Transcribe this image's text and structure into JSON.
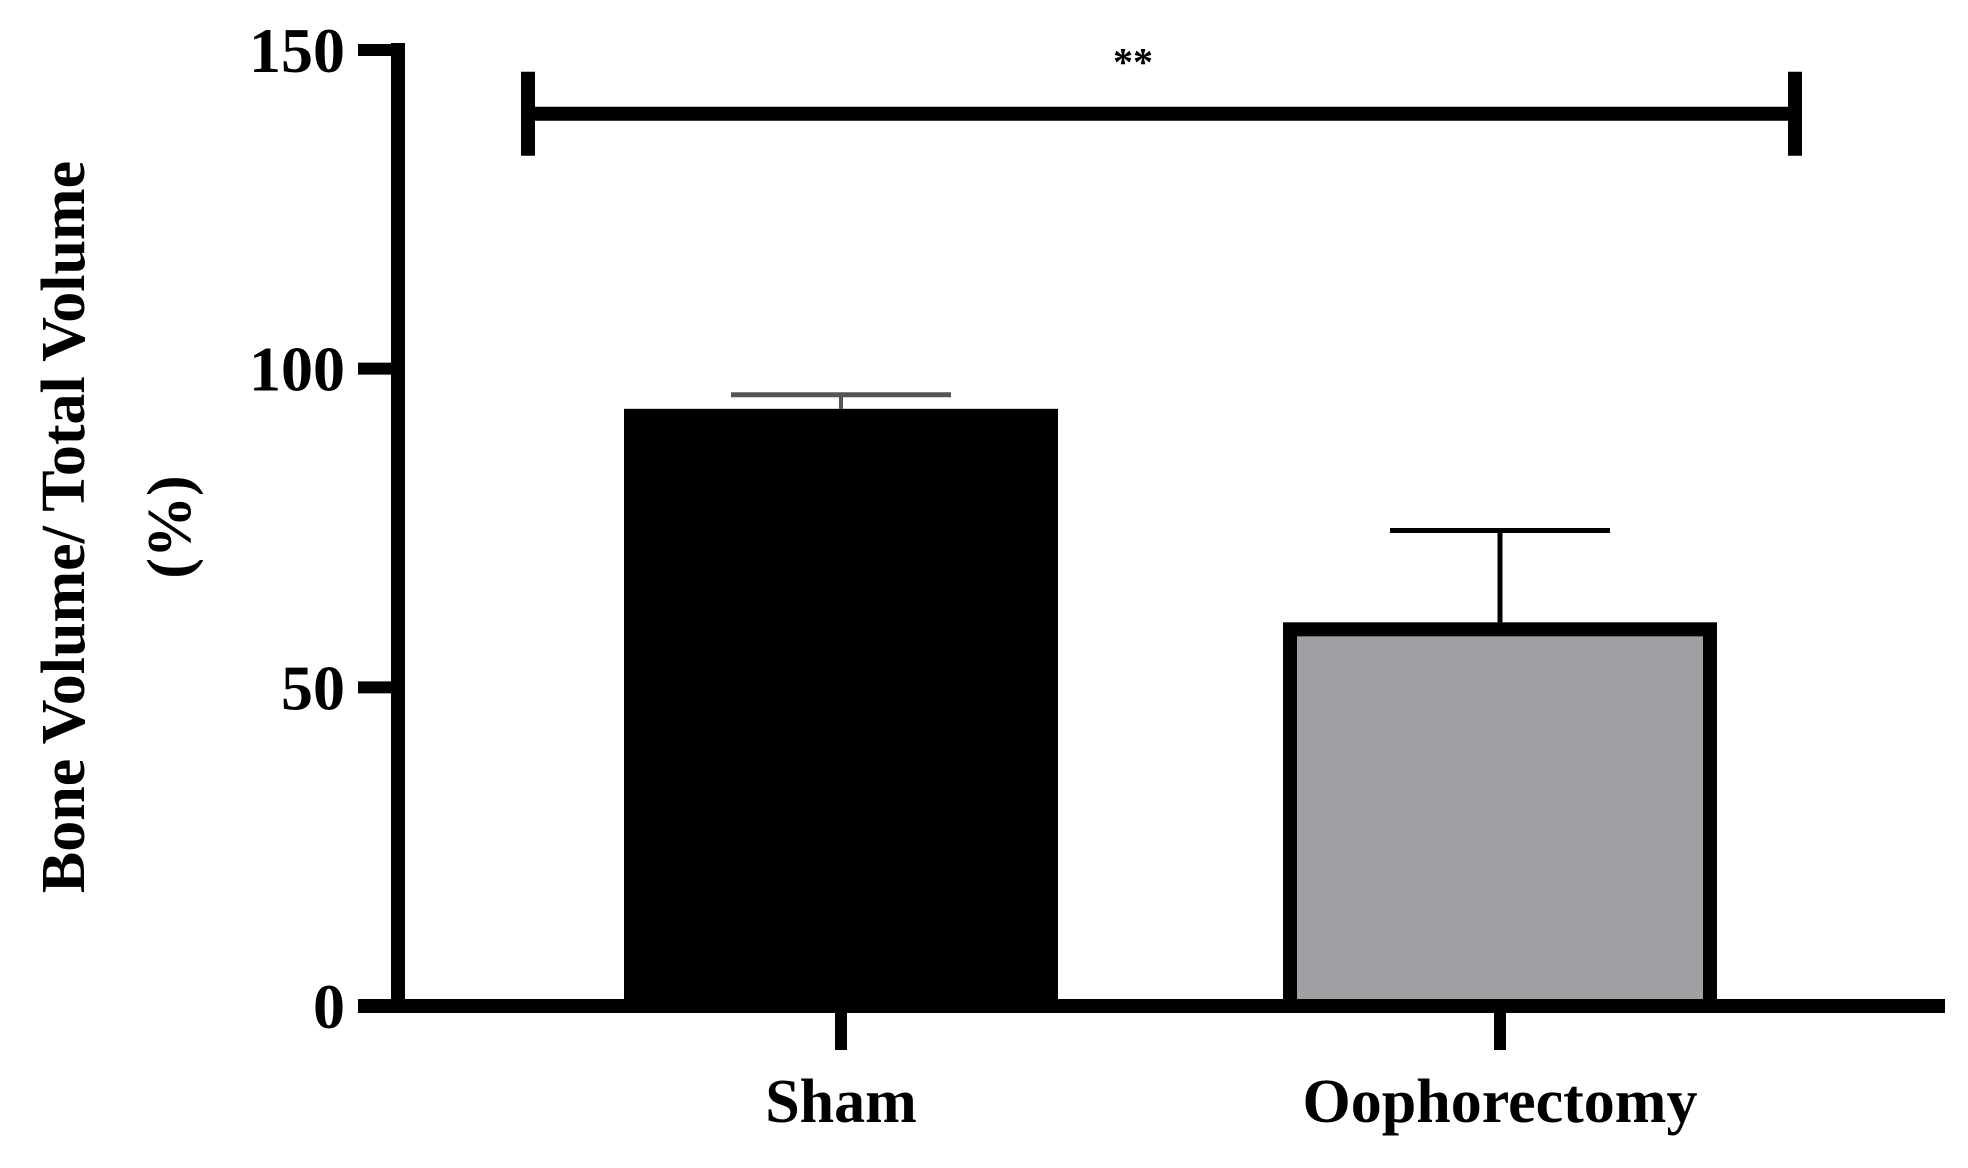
{
  "chart_data": {
    "type": "bar",
    "categories": [
      "Sham",
      "Oophorectomy"
    ],
    "values": [
      93.7,
      60.2
    ],
    "error_upper": [
      95.9,
      74.6
    ],
    "bar_colors": [
      "#000000",
      "#a0a0a4"
    ],
    "ylabel_lines": [
      "Bone Volume/ Total Volume",
      "(%)"
    ],
    "xlabel": "",
    "ylim": [
      0,
      150
    ],
    "yticks": [
      0,
      50,
      100,
      150
    ],
    "grid": false,
    "significance": {
      "from": "Sham",
      "to": "Oophorectomy",
      "label": "**",
      "level": 140
    }
  }
}
